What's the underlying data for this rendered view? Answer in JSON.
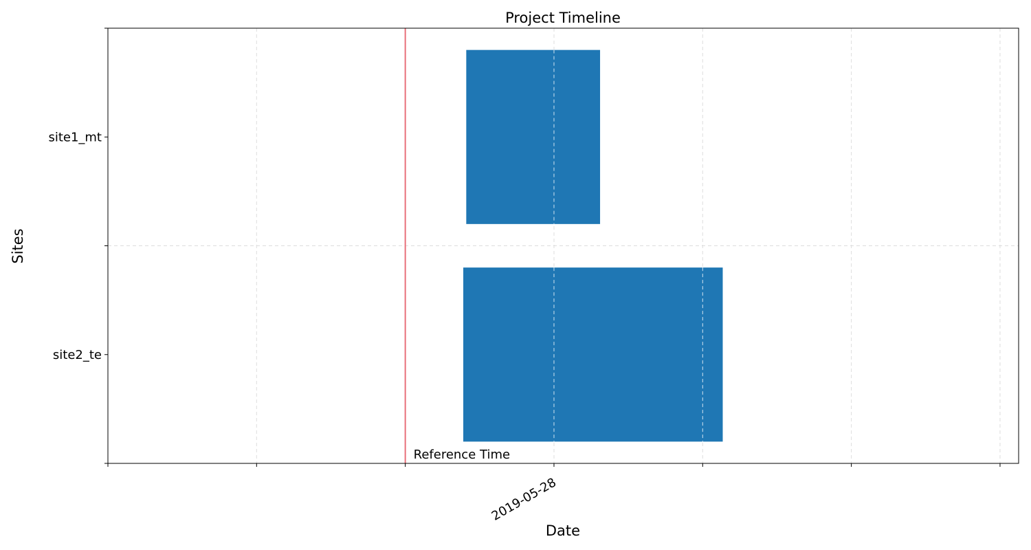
{
  "chart_data": {
    "type": "gantt",
    "title": "Project Timeline",
    "xlabel": "Date",
    "ylabel": "Sites",
    "grid": true,
    "bar_color": "#1f77b4",
    "reference_color": "#e8707a",
    "x_unit": "days since 2019-05-28",
    "xlim": [
      -3,
      3.125
    ],
    "x_ticks": [
      -3,
      -2,
      -1,
      0,
      1,
      2,
      3
    ],
    "x_tick_labels": {
      "0": "2019-05-28"
    },
    "categories": [
      "site1_mt",
      "site2_te"
    ],
    "tasks": [
      {
        "site": "site1_mt",
        "start": -0.59,
        "end": 0.31
      },
      {
        "site": "site2_te",
        "start": -0.61,
        "end": 1.135
      }
    ],
    "reference": {
      "x": -1,
      "label": "Reference Time"
    }
  }
}
